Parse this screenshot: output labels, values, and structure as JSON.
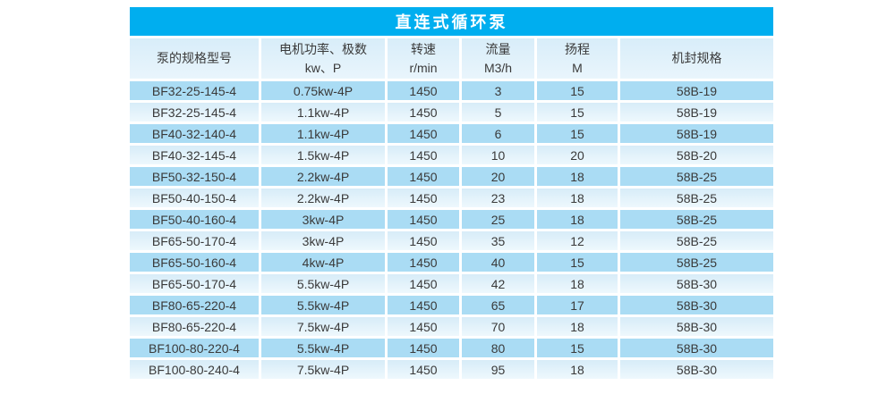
{
  "table": {
    "title": "直连式循环泵",
    "header": [
      {
        "line1": "泵的规格型号",
        "line2": ""
      },
      {
        "line1": "电机功率、极数",
        "line2": "kw、P"
      },
      {
        "line1": "转速",
        "line2": "r/min"
      },
      {
        "line1": "流量",
        "line2": "M3/h"
      },
      {
        "line1": "扬程",
        "line2": "M"
      },
      {
        "line1": "机封规格",
        "line2": ""
      }
    ],
    "rows": [
      [
        "BF32-25-145-4",
        "0.75kw-4P",
        "1450",
        "3",
        "15",
        "58B-19"
      ],
      [
        "BF32-25-145-4",
        "1.1kw-4P",
        "1450",
        "5",
        "15",
        "58B-19"
      ],
      [
        "BF40-32-140-4",
        "1.1kw-4P",
        "1450",
        "6",
        "15",
        "58B-19"
      ],
      [
        "BF40-32-145-4",
        "1.5kw-4P",
        "1450",
        "10",
        "20",
        "58B-20"
      ],
      [
        "BF50-32-150-4",
        "2.2kw-4P",
        "1450",
        "20",
        "18",
        "58B-25"
      ],
      [
        "BF50-40-150-4",
        "2.2kw-4P",
        "1450",
        "23",
        "18",
        "58B-25"
      ],
      [
        "BF50-40-160-4",
        "3kw-4P",
        "1450",
        "25",
        "18",
        "58B-25"
      ],
      [
        "BF65-50-170-4",
        "3kw-4P",
        "1450",
        "35",
        "12",
        "58B-25"
      ],
      [
        "BF65-50-160-4",
        "4kw-4P",
        "1450",
        "40",
        "15",
        "58B-25"
      ],
      [
        "BF65-50-170-4",
        "5.5kw-4P",
        "1450",
        "42",
        "18",
        "58B-30"
      ],
      [
        "BF80-65-220-4",
        "5.5kw-4P",
        "1450",
        "65",
        "17",
        "58B-30"
      ],
      [
        "BF80-65-220-4",
        "7.5kw-4P",
        "1450",
        "70",
        "18",
        "58B-30"
      ],
      [
        "BF100-80-220-4",
        "5.5kw-4P",
        "1450",
        "80",
        "15",
        "58B-30"
      ],
      [
        "BF100-80-240-4",
        "7.5kw-4P",
        "1450",
        "95",
        "18",
        "58B-30"
      ]
    ]
  },
  "colors": {
    "title_bar": "#00AEEF",
    "title_text": "#FFFFFF",
    "row_dark": "#AADCF4",
    "row_light_top": "#D7ECF8",
    "row_light_bottom": "#EEF8FD",
    "header_bg_top": "#D8EDF9",
    "header_bg_bottom": "#E9F5FC",
    "text": "#3A3A3A",
    "page_bg": "#FFFFFF"
  }
}
